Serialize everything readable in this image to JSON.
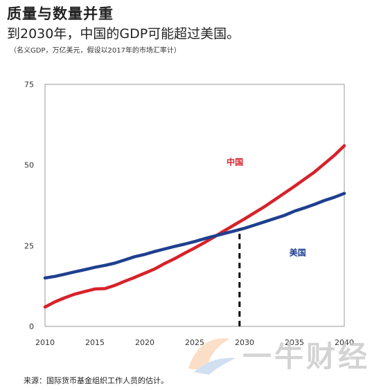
{
  "header": {
    "title": "质量与数量并重",
    "subtitle": "到2030年，中国的GDP可能超过美国。",
    "note": "（名义GDP，万亿美元，假设以2017年的市场汇率计）"
  },
  "footer": {
    "source": "来源：国际货币基金组织工作人员的估计。"
  },
  "watermark": {
    "text": "一牛财经"
  },
  "colors": {
    "china": "#d6222b",
    "usa": "#1f3f8f",
    "axis": "#999999"
  },
  "chart_data": {
    "type": "line",
    "title": "质量与数量并重",
    "xlabel": "",
    "ylabel": "",
    "xlim": [
      2010,
      2040
    ],
    "ylim": [
      0,
      75
    ],
    "xticks": [
      2010,
      2015,
      2020,
      2025,
      2030,
      2035,
      2040
    ],
    "yticks": [
      0,
      25,
      50,
      75
    ],
    "grid": false,
    "series": [
      {
        "name": "中国",
        "key": "china",
        "x": [
          2010,
          2011,
          2012,
          2013,
          2014,
          2015,
          2016,
          2017,
          2018,
          2019,
          2020,
          2021,
          2022,
          2023,
          2024,
          2025,
          2026,
          2027,
          2028,
          2029,
          2030,
          2031,
          2032,
          2033,
          2034,
          2035,
          2036,
          2037,
          2038,
          2039,
          2040
        ],
        "values": [
          6,
          7.6,
          8.9,
          10,
          10.8,
          11.6,
          11.7,
          12.7,
          14,
          15.2,
          16.5,
          17.8,
          19.5,
          21,
          22.7,
          24.3,
          26,
          27.8,
          29.7,
          31.5,
          33.3,
          35.2,
          37.1,
          39.2,
          41.3,
          43.4,
          45.6,
          47.8,
          50.4,
          53,
          56
        ]
      },
      {
        "name": "美国",
        "key": "usa",
        "x": [
          2010,
          2011,
          2012,
          2013,
          2014,
          2015,
          2016,
          2017,
          2018,
          2019,
          2020,
          2021,
          2022,
          2023,
          2024,
          2025,
          2026,
          2027,
          2028,
          2029,
          2030,
          2031,
          2032,
          2033,
          2034,
          2035,
          2036,
          2037,
          2038,
          2039,
          2040
        ],
        "values": [
          15,
          15.5,
          16.2,
          16.9,
          17.6,
          18.3,
          18.9,
          19.6,
          20.6,
          21.6,
          22.3,
          23.2,
          24,
          24.8,
          25.5,
          26.3,
          27.2,
          28,
          28.8,
          29.6,
          30.4,
          31.4,
          32.4,
          33.4,
          34.4,
          35.7,
          36.7,
          37.8,
          39,
          40,
          41.2
        ]
      }
    ],
    "annotations": [
      {
        "type": "dashed-vline",
        "x": 2029.5,
        "y_from": 0,
        "y_to": 30.1
      },
      {
        "type": "label",
        "text": "中国",
        "series": "china",
        "x": 2028.2,
        "y": 50
      },
      {
        "type": "label",
        "text": "美国",
        "series": "usa",
        "x": 2034.5,
        "y": 22
      }
    ]
  }
}
